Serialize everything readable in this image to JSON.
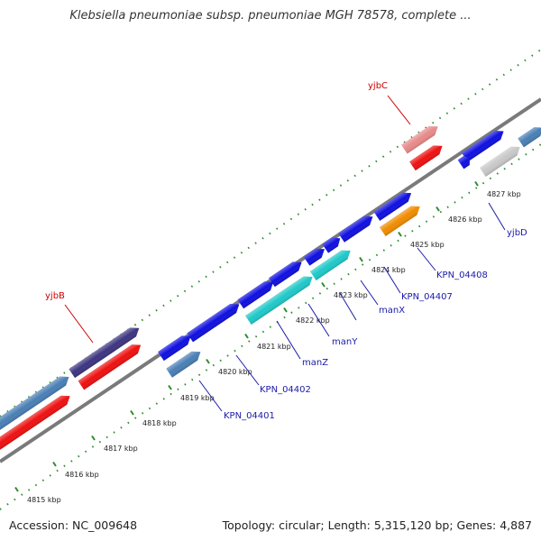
{
  "title": "Klebsiella pneumoniae subsp. pneumoniae MGH 78578, complete ...",
  "footer": {
    "accession": "Accession: NC_009648",
    "summary": "Topology: circular; Length: 5,315,120 bp; Genes: 4,887"
  },
  "scale": {
    "ticks": [
      "4815 kbp",
      "4816 kbp",
      "4817 kbp",
      "4818 kbp",
      "4819 kbp",
      "4820 kbp",
      "4821 kbp",
      "4822 kbp",
      "4823 kbp",
      "4824 kbp",
      "4825 kbp",
      "4826 kbp",
      "4827 kbp"
    ]
  },
  "gene_labels": [
    {
      "text": "yjbC",
      "color": "#cc0000"
    },
    {
      "text": "yjbB",
      "color": "#cc0000"
    },
    {
      "text": "yjbD",
      "color": "#1a1aa8"
    },
    {
      "text": "KPN_04408",
      "color": "#1a1aa8"
    },
    {
      "text": "KPN_04407",
      "color": "#1a1aa8"
    },
    {
      "text": "manX",
      "color": "#1a1aa8"
    },
    {
      "text": "manY",
      "color": "#1a1aa8"
    },
    {
      "text": "manZ",
      "color": "#1a1aa8"
    },
    {
      "text": "KPN_04402",
      "color": "#1a1aa8"
    },
    {
      "text": "KPN_04401",
      "color": "#1a1aa8"
    }
  ],
  "colors": {
    "blue": "#1010e0",
    "steelblue": "#4a7fb5",
    "red": "#ee1111",
    "pink": "#e88a8a",
    "cyan": "#20c8c8",
    "orange": "#f08c00",
    "slate": "#3d3580",
    "gray": "#c8c8c8",
    "backbone": "#7a7a7a",
    "tick": "#2e8b2e"
  }
}
